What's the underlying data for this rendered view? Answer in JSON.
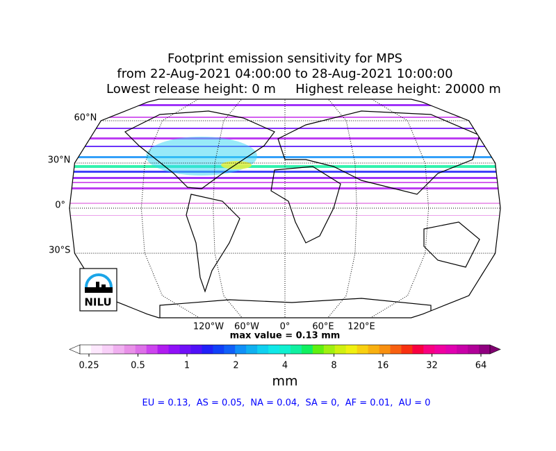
{
  "title": [
    "Footprint emission sensitivity for MPS",
    "from 22-Aug-2021 04:00:00 to 28-Aug-2021 10:00:00"
  ],
  "release_heights": [
    "Lowest release height: 0 m",
    "Highest release height: 20000 m"
  ],
  "map": {
    "lat_ticks": [
      {
        "value": 60,
        "label": "60°N"
      },
      {
        "value": 30,
        "label": "30°N"
      },
      {
        "value": 0,
        "label": "0°"
      },
      {
        "value": -30,
        "label": "30°S"
      }
    ],
    "lon_ticks": [
      {
        "value": -120,
        "label": "120°W"
      },
      {
        "value": -60,
        "label": "60°W"
      },
      {
        "value": 0,
        "label": "0°"
      },
      {
        "value": 60,
        "label": "60°E"
      },
      {
        "value": 120,
        "label": "120°E"
      }
    ],
    "max_value_text": "max value = 0.13 mm",
    "logo_text": "NILU"
  },
  "colorbar": {
    "ticks": [
      0.25,
      0.5,
      1,
      2,
      4,
      8,
      16,
      32,
      64
    ],
    "unit": "mm",
    "under_color": "#ffffff",
    "over_color": "#800070",
    "colors": [
      "#ffffff",
      "#fde8fd",
      "#f8d0f8",
      "#f0b0f0",
      "#e890e8",
      "#dd70e8",
      "#cc44ee",
      "#b01cf0",
      "#9010f8",
      "#7010f8",
      "#5010f8",
      "#2020f8",
      "#1040f8",
      "#1060f8",
      "#1090f8",
      "#10b0f0",
      "#10d0f0",
      "#10e8e8",
      "#10f0d0",
      "#10f0a0",
      "#10f060",
      "#60f010",
      "#a0f010",
      "#d0f010",
      "#f0f010",
      "#f8d010",
      "#f8b010",
      "#f89010",
      "#f86010",
      "#f83010",
      "#f80040",
      "#f80080",
      "#f000a0",
      "#e000b0",
      "#c800a8",
      "#b00098",
      "#900080"
    ]
  },
  "summary": "EU = 0.13,  AS = 0.05,  NA = 0.04,  SA = 0,  AF = 0.01,  AU = 0"
}
